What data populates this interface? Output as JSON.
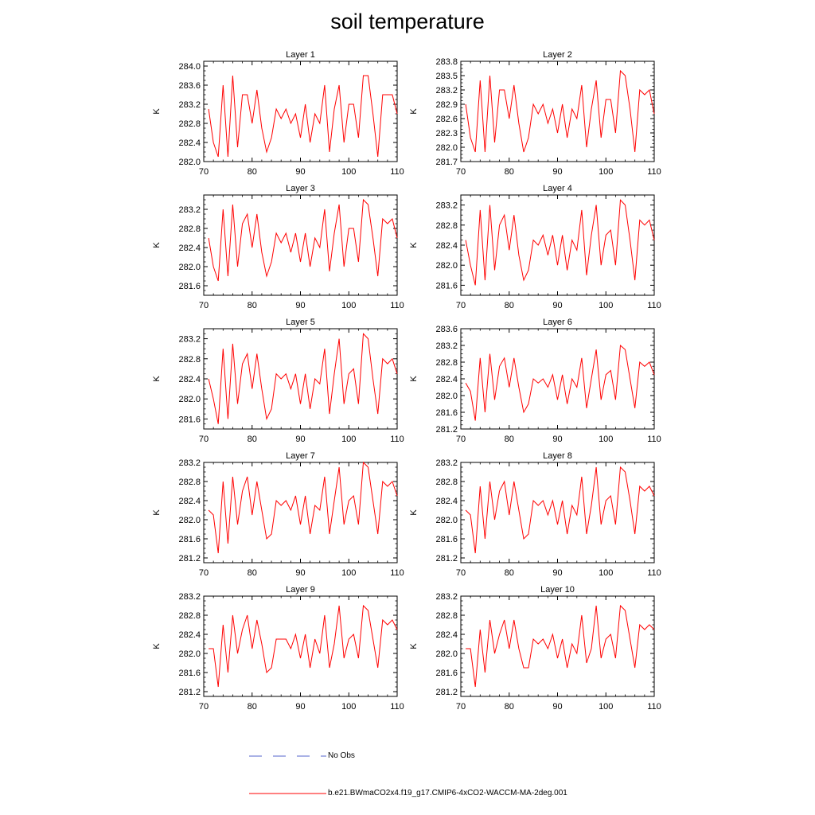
{
  "title": "soil temperature",
  "legend": {
    "obs_label": "No Obs",
    "obs_color": "#5566cc",
    "model_label": "b.e21.BWmaCO2x4.f19_g17.CMIP6-4xCO2-WACCM-MA-2deg.001",
    "model_color": "#ff0000"
  },
  "chart_data": [
    {
      "type": "line",
      "title": "Layer 1",
      "ylabel": "K",
      "xlim": [
        70,
        110
      ],
      "ylim": [
        282.0,
        284.1
      ],
      "yticks": [
        282.0,
        282.4,
        282.8,
        283.2,
        283.6,
        284.0
      ],
      "xticks": [
        70,
        80,
        90,
        100,
        110
      ],
      "x": [
        71,
        72,
        73,
        74,
        75,
        76,
        77,
        78,
        79,
        80,
        81,
        82,
        83,
        84,
        85,
        86,
        87,
        88,
        89,
        90,
        91,
        92,
        93,
        94,
        95,
        96,
        97,
        98,
        99,
        100,
        101,
        102,
        103,
        104,
        105,
        106,
        107,
        108,
        109,
        110
      ],
      "series": [
        {
          "values": [
            283.1,
            282.4,
            282.1,
            283.6,
            282.1,
            283.8,
            282.3,
            283.4,
            283.4,
            282.8,
            283.5,
            282.7,
            282.2,
            282.5,
            283.1,
            282.9,
            283.1,
            282.8,
            283.0,
            282.5,
            283.2,
            282.4,
            283.0,
            282.8,
            283.6,
            282.2,
            283.1,
            283.6,
            282.4,
            283.2,
            283.2,
            282.5,
            283.8,
            283.8,
            283.0,
            282.1,
            283.4,
            283.4,
            283.4,
            283.0
          ]
        }
      ]
    },
    {
      "type": "line",
      "title": "Layer 2",
      "ylabel": "K",
      "xlim": [
        70,
        110
      ],
      "ylim": [
        281.7,
        283.8
      ],
      "yticks": [
        281.7,
        282.0,
        282.3,
        282.6,
        282.9,
        283.2,
        283.5,
        283.8
      ],
      "xticks": [
        70,
        80,
        90,
        100,
        110
      ],
      "x": [
        71,
        72,
        73,
        74,
        75,
        76,
        77,
        78,
        79,
        80,
        81,
        82,
        83,
        84,
        85,
        86,
        87,
        88,
        89,
        90,
        91,
        92,
        93,
        94,
        95,
        96,
        97,
        98,
        99,
        100,
        101,
        102,
        103,
        104,
        105,
        106,
        107,
        108,
        109,
        110
      ],
      "series": [
        {
          "values": [
            282.9,
            282.2,
            281.9,
            283.4,
            281.9,
            283.5,
            282.1,
            283.2,
            283.2,
            282.6,
            283.3,
            282.5,
            281.9,
            282.2,
            282.9,
            282.7,
            282.9,
            282.5,
            282.8,
            282.3,
            282.9,
            282.2,
            282.8,
            282.6,
            283.3,
            282.0,
            282.8,
            283.4,
            282.2,
            283.0,
            283.0,
            282.3,
            283.6,
            283.5,
            282.8,
            281.9,
            283.2,
            283.1,
            283.2,
            282.7
          ]
        }
      ]
    },
    {
      "type": "line",
      "title": "Layer 3",
      "ylabel": "K",
      "xlim": [
        70,
        110
      ],
      "ylim": [
        281.4,
        283.5
      ],
      "yticks": [
        281.6,
        282.0,
        282.4,
        282.8,
        283.2
      ],
      "xticks": [
        70,
        80,
        90,
        100,
        110
      ],
      "x": [
        71,
        72,
        73,
        74,
        75,
        76,
        77,
        78,
        79,
        80,
        81,
        82,
        83,
        84,
        85,
        86,
        87,
        88,
        89,
        90,
        91,
        92,
        93,
        94,
        95,
        96,
        97,
        98,
        99,
        100,
        101,
        102,
        103,
        104,
        105,
        106,
        107,
        108,
        109,
        110
      ],
      "series": [
        {
          "values": [
            282.6,
            282.0,
            281.7,
            283.2,
            281.8,
            283.3,
            282.0,
            282.9,
            283.1,
            282.4,
            283.1,
            282.3,
            281.8,
            282.1,
            282.7,
            282.5,
            282.7,
            282.3,
            282.7,
            282.1,
            282.7,
            282.0,
            282.6,
            282.4,
            283.2,
            281.9,
            282.7,
            283.3,
            282.0,
            282.8,
            282.8,
            282.1,
            283.4,
            283.3,
            282.6,
            281.8,
            283.0,
            282.9,
            283.0,
            282.6
          ]
        }
      ]
    },
    {
      "type": "line",
      "title": "Layer 4",
      "ylabel": "K",
      "xlim": [
        70,
        110
      ],
      "ylim": [
        281.4,
        283.4
      ],
      "yticks": [
        281.6,
        282.0,
        282.4,
        282.8,
        283.2
      ],
      "xticks": [
        70,
        80,
        90,
        100,
        110
      ],
      "x": [
        71,
        72,
        73,
        74,
        75,
        76,
        77,
        78,
        79,
        80,
        81,
        82,
        83,
        84,
        85,
        86,
        87,
        88,
        89,
        90,
        91,
        92,
        93,
        94,
        95,
        96,
        97,
        98,
        99,
        100,
        101,
        102,
        103,
        104,
        105,
        106,
        107,
        108,
        109,
        110
      ],
      "series": [
        {
          "values": [
            282.5,
            282.0,
            281.6,
            283.1,
            281.7,
            283.2,
            281.9,
            282.8,
            283.0,
            282.3,
            283.0,
            282.2,
            281.7,
            281.9,
            282.5,
            282.4,
            282.6,
            282.2,
            282.6,
            282.0,
            282.6,
            281.9,
            282.5,
            282.3,
            283.1,
            281.8,
            282.6,
            283.2,
            282.0,
            282.6,
            282.7,
            282.0,
            283.3,
            283.2,
            282.5,
            281.7,
            282.9,
            282.8,
            282.9,
            282.5
          ]
        }
      ]
    },
    {
      "type": "line",
      "title": "Layer 5",
      "ylabel": "K",
      "xlim": [
        70,
        110
      ],
      "ylim": [
        281.4,
        283.4
      ],
      "yticks": [
        281.6,
        282.0,
        282.4,
        282.8,
        283.2
      ],
      "xticks": [
        70,
        80,
        90,
        100,
        110
      ],
      "x": [
        71,
        72,
        73,
        74,
        75,
        76,
        77,
        78,
        79,
        80,
        81,
        82,
        83,
        84,
        85,
        86,
        87,
        88,
        89,
        90,
        91,
        92,
        93,
        94,
        95,
        96,
        97,
        98,
        99,
        100,
        101,
        102,
        103,
        104,
        105,
        106,
        107,
        108,
        109,
        110
      ],
      "series": [
        {
          "values": [
            282.4,
            282.0,
            281.5,
            283.0,
            281.6,
            283.1,
            281.9,
            282.7,
            282.9,
            282.2,
            282.9,
            282.2,
            281.6,
            281.8,
            282.5,
            282.4,
            282.5,
            282.2,
            282.5,
            281.9,
            282.5,
            281.8,
            282.4,
            282.3,
            283.0,
            281.7,
            282.5,
            283.2,
            281.9,
            282.5,
            282.6,
            281.9,
            283.3,
            283.2,
            282.4,
            281.7,
            282.8,
            282.7,
            282.8,
            282.5
          ]
        }
      ]
    },
    {
      "type": "line",
      "title": "Layer 6",
      "ylabel": "K",
      "xlim": [
        70,
        110
      ],
      "ylim": [
        281.2,
        283.6
      ],
      "yticks": [
        281.2,
        281.6,
        282.0,
        282.4,
        282.8,
        283.2,
        283.6
      ],
      "xticks": [
        70,
        80,
        90,
        100,
        110
      ],
      "x": [
        71,
        72,
        73,
        74,
        75,
        76,
        77,
        78,
        79,
        80,
        81,
        82,
        83,
        84,
        85,
        86,
        87,
        88,
        89,
        90,
        91,
        92,
        93,
        94,
        95,
        96,
        97,
        98,
        99,
        100,
        101,
        102,
        103,
        104,
        105,
        106,
        107,
        108,
        109,
        110
      ],
      "series": [
        {
          "values": [
            282.3,
            282.1,
            281.4,
            282.9,
            281.6,
            283.0,
            281.9,
            282.7,
            282.9,
            282.2,
            282.9,
            282.2,
            281.6,
            281.8,
            282.4,
            282.3,
            282.4,
            282.2,
            282.5,
            281.9,
            282.5,
            281.8,
            282.4,
            282.2,
            282.9,
            281.7,
            282.4,
            283.1,
            281.9,
            282.5,
            282.6,
            281.9,
            283.2,
            283.1,
            282.4,
            281.7,
            282.8,
            282.7,
            282.8,
            282.5
          ]
        }
      ]
    },
    {
      "type": "line",
      "title": "Layer 7",
      "ylabel": "K",
      "xlim": [
        70,
        110
      ],
      "ylim": [
        281.1,
        283.2
      ],
      "yticks": [
        281.2,
        281.6,
        282.0,
        282.4,
        282.8,
        283.2
      ],
      "xticks": [
        70,
        80,
        90,
        100,
        110
      ],
      "x": [
        71,
        72,
        73,
        74,
        75,
        76,
        77,
        78,
        79,
        80,
        81,
        82,
        83,
        84,
        85,
        86,
        87,
        88,
        89,
        90,
        91,
        92,
        93,
        94,
        95,
        96,
        97,
        98,
        99,
        100,
        101,
        102,
        103,
        104,
        105,
        106,
        107,
        108,
        109,
        110
      ],
      "series": [
        {
          "values": [
            282.2,
            282.1,
            281.3,
            282.8,
            281.5,
            282.9,
            281.9,
            282.6,
            282.9,
            282.1,
            282.8,
            282.2,
            281.6,
            281.7,
            282.4,
            282.3,
            282.4,
            282.2,
            282.5,
            281.9,
            282.5,
            281.7,
            282.3,
            282.2,
            282.9,
            281.7,
            282.4,
            283.1,
            281.9,
            282.4,
            282.5,
            281.9,
            283.2,
            283.1,
            282.4,
            281.7,
            282.8,
            282.7,
            282.8,
            282.5
          ]
        }
      ]
    },
    {
      "type": "line",
      "title": "Layer 8",
      "ylabel": "K",
      "xlim": [
        70,
        110
      ],
      "ylim": [
        281.1,
        283.2
      ],
      "yticks": [
        281.2,
        281.6,
        282.0,
        282.4,
        282.8,
        283.2
      ],
      "xticks": [
        70,
        80,
        90,
        100,
        110
      ],
      "x": [
        71,
        72,
        73,
        74,
        75,
        76,
        77,
        78,
        79,
        80,
        81,
        82,
        83,
        84,
        85,
        86,
        87,
        88,
        89,
        90,
        91,
        92,
        93,
        94,
        95,
        96,
        97,
        98,
        99,
        100,
        101,
        102,
        103,
        104,
        105,
        106,
        107,
        108,
        109,
        110
      ],
      "series": [
        {
          "values": [
            282.2,
            282.1,
            281.3,
            282.7,
            281.6,
            282.8,
            282.0,
            282.6,
            282.8,
            282.1,
            282.8,
            282.2,
            281.6,
            281.7,
            282.4,
            282.3,
            282.4,
            282.1,
            282.4,
            281.9,
            282.4,
            281.7,
            282.3,
            282.1,
            282.9,
            281.7,
            282.3,
            283.1,
            281.9,
            282.4,
            282.5,
            281.9,
            283.1,
            283.0,
            282.4,
            281.7,
            282.7,
            282.6,
            282.7,
            282.5
          ]
        }
      ]
    },
    {
      "type": "line",
      "title": "Layer 9",
      "ylabel": "K",
      "xlim": [
        70,
        110
      ],
      "ylim": [
        281.1,
        283.2
      ],
      "yticks": [
        281.2,
        281.6,
        282.0,
        282.4,
        282.8,
        283.2
      ],
      "xticks": [
        70,
        80,
        90,
        100,
        110
      ],
      "x": [
        71,
        72,
        73,
        74,
        75,
        76,
        77,
        78,
        79,
        80,
        81,
        82,
        83,
        84,
        85,
        86,
        87,
        88,
        89,
        90,
        91,
        92,
        93,
        94,
        95,
        96,
        97,
        98,
        99,
        100,
        101,
        102,
        103,
        104,
        105,
        106,
        107,
        108,
        109,
        110
      ],
      "series": [
        {
          "values": [
            282.1,
            282.1,
            281.3,
            282.6,
            281.6,
            282.8,
            282.0,
            282.5,
            282.8,
            282.1,
            282.7,
            282.2,
            281.6,
            281.7,
            282.3,
            282.3,
            282.3,
            282.1,
            282.4,
            281.9,
            282.4,
            281.7,
            282.3,
            282.0,
            282.8,
            281.7,
            282.2,
            283.0,
            281.9,
            282.3,
            282.4,
            281.9,
            283.0,
            282.9,
            282.3,
            281.7,
            282.7,
            282.6,
            282.7,
            282.5
          ]
        }
      ]
    },
    {
      "type": "line",
      "title": "Layer 10",
      "ylabel": "K",
      "xlim": [
        70,
        110
      ],
      "ylim": [
        281.1,
        283.2
      ],
      "yticks": [
        281.2,
        281.6,
        282.0,
        282.4,
        282.8,
        283.2
      ],
      "xticks": [
        70,
        80,
        90,
        100,
        110
      ],
      "x": [
        71,
        72,
        73,
        74,
        75,
        76,
        77,
        78,
        79,
        80,
        81,
        82,
        83,
        84,
        85,
        86,
        87,
        88,
        89,
        90,
        91,
        92,
        93,
        94,
        95,
        96,
        97,
        98,
        99,
        100,
        101,
        102,
        103,
        104,
        105,
        106,
        107,
        108,
        109,
        110
      ],
      "series": [
        {
          "values": [
            282.1,
            282.1,
            281.3,
            282.5,
            281.6,
            282.7,
            282.0,
            282.4,
            282.7,
            282.1,
            282.7,
            282.1,
            281.7,
            281.7,
            282.3,
            282.2,
            282.3,
            282.1,
            282.4,
            281.9,
            282.3,
            281.7,
            282.2,
            282.0,
            282.8,
            281.8,
            282.1,
            283.0,
            281.9,
            282.3,
            282.4,
            281.9,
            283.0,
            282.9,
            282.3,
            281.7,
            282.6,
            282.5,
            282.6,
            282.5
          ]
        }
      ]
    }
  ]
}
